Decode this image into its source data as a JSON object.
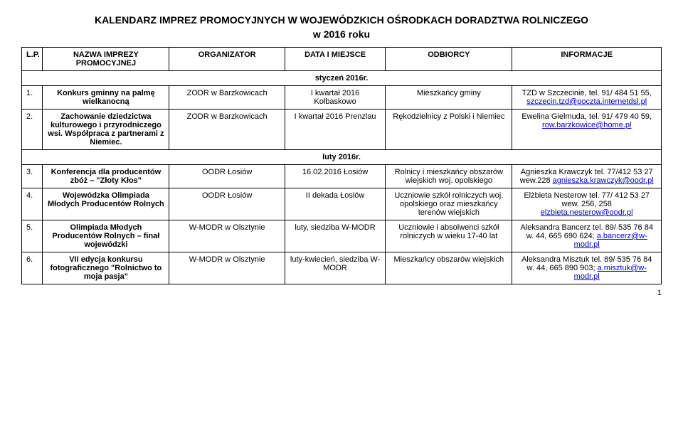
{
  "page": {
    "title": "KALENDARZ IMPREZ PROMOCYJNYCH W WOJEWÓDZKICH OŚRODKACH DORADZTWA ROLNICZEGO",
    "subtitle": "w 2016 roku",
    "pageNumber": "1"
  },
  "headers": {
    "lp": "L.P.",
    "name": "NAZWA IMPREZY PROMOCYJNEJ",
    "org": "ORGANIZATOR",
    "date": "DATA I MIEJSCE",
    "rec": "ODBIORCY",
    "info": "INFORMACJE"
  },
  "months": {
    "jan": "styczeń 2016r.",
    "feb": "luty 2016r."
  },
  "rows": [
    {
      "lp": "1.",
      "name": "Konkurs gminny na palmę wielkanocną",
      "org": "ZODR w Barzkowicach",
      "date": "I kwartał 2016 Kołbaskowo",
      "rec": "Mieszkańcy gminy",
      "info_pre": "TZD w Szczecinie, tel. 91/ 484 51 55, ",
      "info_link": "szczecin.tzd@poczta.internetdsl.pl"
    },
    {
      "lp": "2.",
      "name": "Zachowanie dziedzictwa kulturowego i przyrodniczego wsi. Współpraca z partnerami z Niemiec.",
      "org": "ZODR w Barzkowicach",
      "date": "I kwartał 2016 Prenzlau",
      "rec": "Rękodzielnicy z Polski i Niemiec",
      "info_pre": "Ewelina Gielmuda, tel. 91/ 479 40 59, ",
      "info_link": "row.barzkowice@home.pl"
    },
    {
      "lp": "3.",
      "name": "Konferencja dla producentów zbóż – \"Złoty Kłos\"",
      "org": "OODR Łosiów",
      "date": "16.02.2016 Łosiów",
      "rec": "Rolnicy i mieszkańcy obszarów wiejskich woj. opolskiego",
      "info_pre": "Agnieszka Krawczyk tel. 77/412 53 27 wew.228 ",
      "info_link": "agnieszka.krawczyk@oodr.pl"
    },
    {
      "lp": "4.",
      "name": "Wojewódzka Olimpiada Młodych Producentów Rolnych",
      "org": "OODR Łosiów",
      "date": "II dekada Łosiów",
      "rec": "Uczniowie szkół rolniczych woj. opolskiego oraz mieszkańcy terenów wiejskich",
      "info_pre": "Elżbieta Nesterow tel. 77/ 412 53 27 wew. 256, 258 ",
      "info_link": "elzbieta.nesterow@oodr.pl"
    },
    {
      "lp": "5.",
      "name": "Olimpiada Młodych Producentów Rolnych – finał wojewódzki",
      "org": "W-MODR w Olsztynie",
      "date": "luty, siedziba W-MODR",
      "rec": "Uczniowie i absolwenci szkół rolniczych w wieku 17-40 lat",
      "info_pre": "Aleksandra Bancerz tel. 89/ 535 76 84 w. 44, 665 690 624; ",
      "info_link": "a.bancerz@w-modr.pl"
    },
    {
      "lp": "6.",
      "name": "VII edycja konkursu fotograficznego \"Rolnictwo to moja pasja\"",
      "org": "W-MODR w Olsztynie",
      "date": "luty-kwiecień, siedziba W-MODR",
      "rec": "Mieszkańcy obszarów wiejskich",
      "info_pre": "Aleksandra Misztuk tel. 89/ 535 76 84 w. 44, 665 890 903; ",
      "info_link": "a.misztuk@w-modr.pl"
    }
  ]
}
